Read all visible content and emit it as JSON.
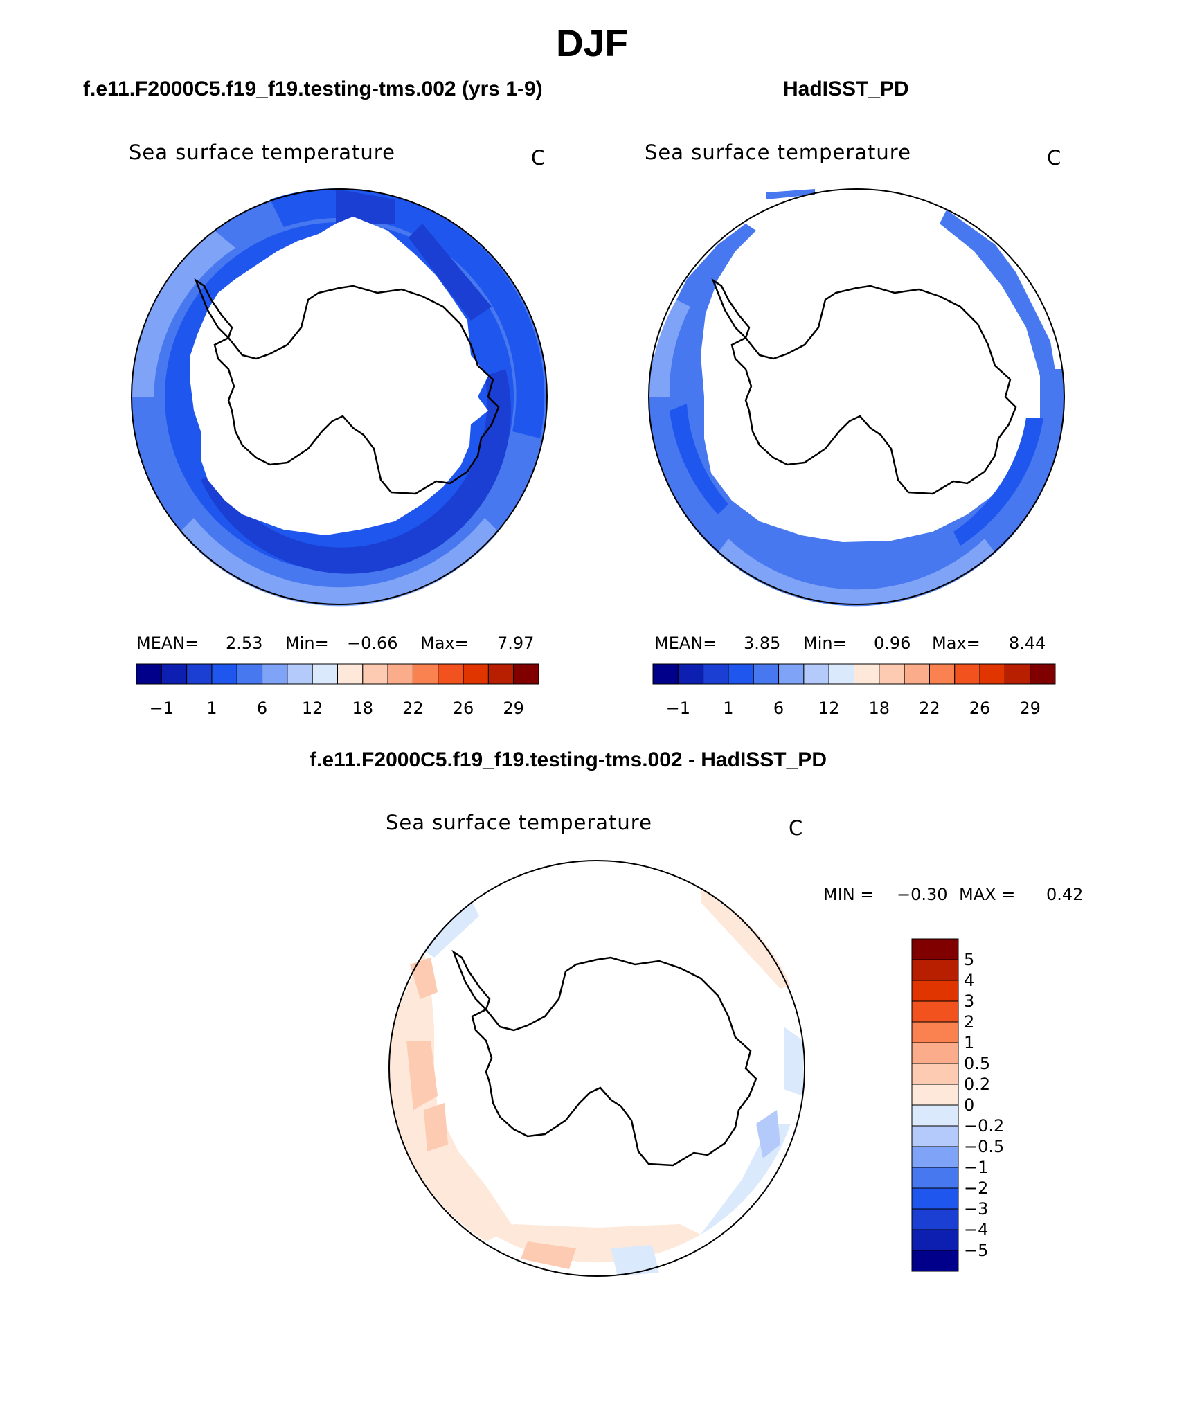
{
  "title": "DJF",
  "panels": [
    {
      "title": "f.e11.F2000C5.f19_f19.testing-tms.002 (yrs 1-9)",
      "variable": "Sea surface temperature",
      "units": "C",
      "stats": {
        "mean_label": "MEAN=",
        "mean": "2.53",
        "min_label": "Min=",
        "min": "−0.66",
        "max_label": "Max=",
        "max": "7.97"
      }
    },
    {
      "title": "HadISST_PD",
      "variable": "Sea surface temperature",
      "units": "C",
      "stats": {
        "mean_label": "MEAN=",
        "mean": "3.85",
        "min_label": "Min=",
        "min": "0.96",
        "max_label": "Max=",
        "max": "8.44"
      }
    }
  ],
  "colorbar": {
    "colors": [
      "#00008b",
      "#0c1fb0",
      "#1a3fd2",
      "#1f56ee",
      "#4778ef",
      "#7fa3f6",
      "#b3cafa",
      "#dbe9fc",
      "#fde8d9",
      "#fccbb1",
      "#fbad8b",
      "#f98250",
      "#f2521e",
      "#e13500",
      "#b81e00",
      "#800000"
    ],
    "tick_labels": [
      "−1",
      "1",
      "6",
      "12",
      "18",
      "22",
      "26",
      "29"
    ]
  },
  "diff_panel": {
    "title": "f.e11.F2000C5.f19_f19.testing-tms.002 - HadISST_PD",
    "variable": "Sea surface temperature",
    "units": "C",
    "min_label": "MIN =",
    "min": "−0.30",
    "max_label": "MAX =",
    "max": "0.42",
    "colorbar": {
      "colors": [
        "#800000",
        "#b81e00",
        "#e13500",
        "#f2521e",
        "#f98250",
        "#fbad8b",
        "#fccbb1",
        "#fde8d9",
        "#dbe9fc",
        "#b3cafa",
        "#7fa3f6",
        "#4778ef",
        "#1f56ee",
        "#1a3fd2",
        "#0c1fb0",
        "#00008b"
      ],
      "tick_labels": [
        "5",
        "4",
        "3",
        "2",
        "1",
        "0.5",
        "0.2",
        "0",
        "−0.2",
        "−0.5",
        "−1",
        "−2",
        "−3",
        "−4",
        "−5"
      ]
    }
  },
  "map_colors": {
    "deep": "#1a3fd2",
    "mid": "#1f56ee",
    "light": "#4778ef",
    "pale": "#7fa3f6",
    "ice": "#ffffff",
    "warm1": "#fde8d9",
    "warm2": "#fccbb1",
    "cool1": "#dbe9fc",
    "cool2": "#b3cafa"
  }
}
